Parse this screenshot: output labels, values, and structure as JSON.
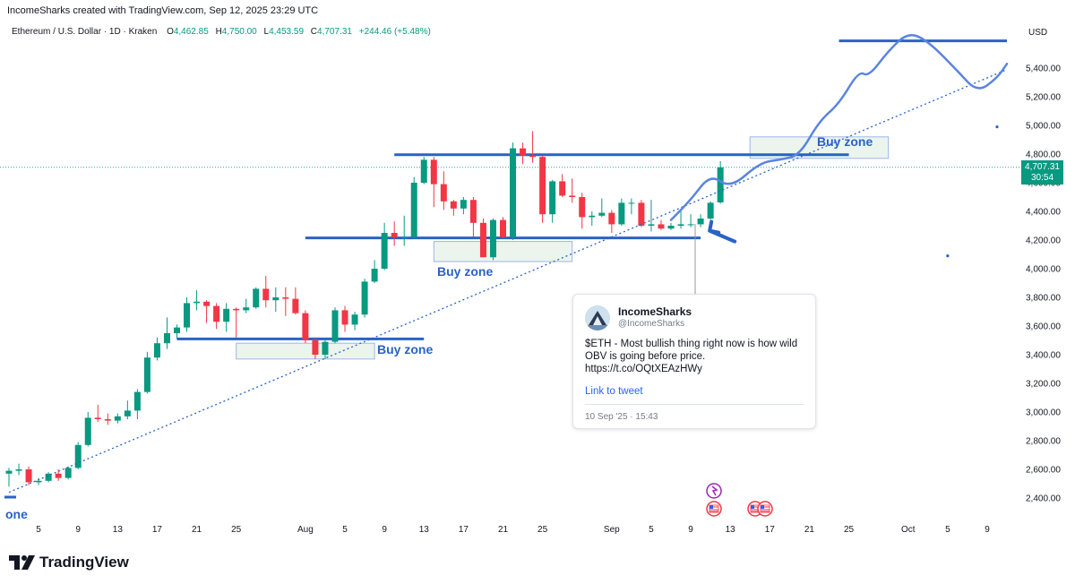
{
  "credit": "IncomeSharks created with TradingView.com, Sep 12, 2025 23:29 UTC",
  "legend": {
    "symbol": "Ethereum / U.S. Dollar · 1D · Kraken",
    "o_label": "O",
    "o": "4,462.85",
    "h_label": "H",
    "h": "4,750.00",
    "l_label": "L",
    "l": "4,453.59",
    "c_label": "C",
    "c": "4,707.31",
    "change": "+244.46 (+5.48%)"
  },
  "currency": "USD",
  "price_badge": {
    "price": "4,707.31",
    "countdown": "30:54"
  },
  "colors": {
    "up": "#089981",
    "down": "#f23645",
    "drawing": "#2962c7",
    "hand_line": "#5b84e0",
    "zone_fill": "#e6f2ea",
    "zone_border": "#9db6e6"
  },
  "annotations": {
    "buy_zone_1": "Buy zone",
    "buy_zone_2": "Buy zone",
    "buy_zone_3": "Buy zone",
    "edge_text": "one"
  },
  "tweet": {
    "name": "IncomeSharks",
    "handle": "@IncomeSharks",
    "body": "$ETH - Most bullish thing right now is how wild OBV is going before price. https://t.co/OQtXEAzHWy",
    "link": "Link to tweet",
    "date": "10 Sep '25 · 15:43"
  },
  "branding": "TradingView",
  "chart_data": {
    "type": "candlestick",
    "y_axis": {
      "ticks": [
        2400,
        2600,
        2800,
        3000,
        3200,
        3400,
        3600,
        3800,
        4000,
        4200,
        4400,
        4600,
        4800,
        5000,
        5200,
        5400
      ],
      "tick_labels": [
        "2,400.00",
        "2,600.00",
        "2,800.00",
        "3,000.00",
        "3,200.00",
        "3,400.00",
        "3,600.00",
        "3,800.00",
        "4,000.00",
        "4,200.00",
        "4,400.00",
        "4,600.00",
        "4,800.00",
        "5,000.00",
        "5,200.00",
        "5,400.00"
      ],
      "ylim": [
        2300,
        5700
      ]
    },
    "x_axis": {
      "start_date": "2025-07-02",
      "end_date": "2025-10-11",
      "tick_labels": [
        {
          "date": "2025-07-05",
          "label": "5"
        },
        {
          "date": "2025-07-09",
          "label": "9"
        },
        {
          "date": "2025-07-13",
          "label": "13"
        },
        {
          "date": "2025-07-17",
          "label": "17"
        },
        {
          "date": "2025-07-21",
          "label": "21"
        },
        {
          "date": "2025-07-25",
          "label": "25"
        },
        {
          "date": "2025-08-01",
          "label": "Aug"
        },
        {
          "date": "2025-08-05",
          "label": "5"
        },
        {
          "date": "2025-08-09",
          "label": "9"
        },
        {
          "date": "2025-08-13",
          "label": "13"
        },
        {
          "date": "2025-08-17",
          "label": "17"
        },
        {
          "date": "2025-08-21",
          "label": "21"
        },
        {
          "date": "2025-08-25",
          "label": "25"
        },
        {
          "date": "2025-09-01",
          "label": "Sep"
        },
        {
          "date": "2025-09-05",
          "label": "5"
        },
        {
          "date": "2025-09-09",
          "label": "9"
        },
        {
          "date": "2025-09-13",
          "label": "13"
        },
        {
          "date": "2025-09-17",
          "label": "17"
        },
        {
          "date": "2025-09-21",
          "label": "21"
        },
        {
          "date": "2025-09-25",
          "label": "25"
        },
        {
          "date": "2025-10-01",
          "label": "Oct"
        },
        {
          "date": "2025-10-05",
          "label": "5"
        },
        {
          "date": "2025-10-09",
          "label": "9"
        }
      ]
    },
    "last_price": 4707.31,
    "candles": [
      {
        "d": "2025-07-02",
        "o": 2570,
        "h": 2610,
        "l": 2480,
        "c": 2590
      },
      {
        "d": "2025-07-03",
        "o": 2590,
        "h": 2640,
        "l": 2560,
        "c": 2600
      },
      {
        "d": "2025-07-04",
        "o": 2600,
        "h": 2620,
        "l": 2490,
        "c": 2510
      },
      {
        "d": "2025-07-05",
        "o": 2510,
        "h": 2540,
        "l": 2490,
        "c": 2520
      },
      {
        "d": "2025-07-06",
        "o": 2520,
        "h": 2580,
        "l": 2510,
        "c": 2570
      },
      {
        "d": "2025-07-07",
        "o": 2570,
        "h": 2600,
        "l": 2520,
        "c": 2540
      },
      {
        "d": "2025-07-08",
        "o": 2540,
        "h": 2620,
        "l": 2530,
        "c": 2610
      },
      {
        "d": "2025-07-09",
        "o": 2610,
        "h": 2790,
        "l": 2600,
        "c": 2770
      },
      {
        "d": "2025-07-10",
        "o": 2770,
        "h": 3000,
        "l": 2760,
        "c": 2960
      },
      {
        "d": "2025-07-11",
        "o": 2960,
        "h": 3050,
        "l": 2930,
        "c": 2950
      },
      {
        "d": "2025-07-12",
        "o": 2950,
        "h": 2990,
        "l": 2910,
        "c": 2940
      },
      {
        "d": "2025-07-13",
        "o": 2940,
        "h": 2990,
        "l": 2920,
        "c": 2970
      },
      {
        "d": "2025-07-14",
        "o": 2970,
        "h": 3080,
        "l": 2950,
        "c": 3010
      },
      {
        "d": "2025-07-15",
        "o": 3010,
        "h": 3160,
        "l": 2950,
        "c": 3140
      },
      {
        "d": "2025-07-16",
        "o": 3140,
        "h": 3420,
        "l": 3130,
        "c": 3380
      },
      {
        "d": "2025-07-17",
        "o": 3380,
        "h": 3520,
        "l": 3360,
        "c": 3480
      },
      {
        "d": "2025-07-18",
        "o": 3480,
        "h": 3660,
        "l": 3440,
        "c": 3550
      },
      {
        "d": "2025-07-19",
        "o": 3550,
        "h": 3610,
        "l": 3510,
        "c": 3590
      },
      {
        "d": "2025-07-20",
        "o": 3590,
        "h": 3800,
        "l": 3560,
        "c": 3760
      },
      {
        "d": "2025-07-21",
        "o": 3760,
        "h": 3850,
        "l": 3710,
        "c": 3770
      },
      {
        "d": "2025-07-22",
        "o": 3770,
        "h": 3780,
        "l": 3620,
        "c": 3740
      },
      {
        "d": "2025-07-23",
        "o": 3740,
        "h": 3760,
        "l": 3580,
        "c": 3630
      },
      {
        "d": "2025-07-24",
        "o": 3630,
        "h": 3760,
        "l": 3560,
        "c": 3720
      },
      {
        "d": "2025-07-25",
        "o": 3720,
        "h": 3730,
        "l": 3520,
        "c": 3710
      },
      {
        "d": "2025-07-26",
        "o": 3710,
        "h": 3790,
        "l": 3690,
        "c": 3730
      },
      {
        "d": "2025-07-27",
        "o": 3730,
        "h": 3870,
        "l": 3720,
        "c": 3860
      },
      {
        "d": "2025-07-28",
        "o": 3860,
        "h": 3950,
        "l": 3730,
        "c": 3780
      },
      {
        "d": "2025-07-29",
        "o": 3780,
        "h": 3870,
        "l": 3700,
        "c": 3800
      },
      {
        "d": "2025-07-30",
        "o": 3800,
        "h": 3870,
        "l": 3670,
        "c": 3790
      },
      {
        "d": "2025-07-31",
        "o": 3790,
        "h": 3870,
        "l": 3680,
        "c": 3690
      },
      {
        "d": "2025-08-01",
        "o": 3690,
        "h": 3710,
        "l": 3480,
        "c": 3500
      },
      {
        "d": "2025-08-02",
        "o": 3500,
        "h": 3520,
        "l": 3370,
        "c": 3400
      },
      {
        "d": "2025-08-03",
        "o": 3400,
        "h": 3510,
        "l": 3370,
        "c": 3490
      },
      {
        "d": "2025-08-04",
        "o": 3490,
        "h": 3730,
        "l": 3480,
        "c": 3710
      },
      {
        "d": "2025-08-05",
        "o": 3710,
        "h": 3740,
        "l": 3560,
        "c": 3610
      },
      {
        "d": "2025-08-06",
        "o": 3610,
        "h": 3700,
        "l": 3570,
        "c": 3680
      },
      {
        "d": "2025-08-07",
        "o": 3680,
        "h": 3930,
        "l": 3660,
        "c": 3910
      },
      {
        "d": "2025-08-08",
        "o": 3910,
        "h": 4060,
        "l": 3900,
        "c": 4000
      },
      {
        "d": "2025-08-09",
        "o": 4000,
        "h": 4320,
        "l": 3990,
        "c": 4250
      },
      {
        "d": "2025-08-10",
        "o": 4250,
        "h": 4330,
        "l": 4160,
        "c": 4220
      },
      {
        "d": "2025-08-11",
        "o": 4220,
        "h": 4370,
        "l": 4160,
        "c": 4220
      },
      {
        "d": "2025-08-12",
        "o": 4220,
        "h": 4640,
        "l": 4210,
        "c": 4600
      },
      {
        "d": "2025-08-13",
        "o": 4600,
        "h": 4780,
        "l": 4590,
        "c": 4760
      },
      {
        "d": "2025-08-14",
        "o": 4760,
        "h": 4780,
        "l": 4430,
        "c": 4590
      },
      {
        "d": "2025-08-15",
        "o": 4590,
        "h": 4680,
        "l": 4410,
        "c": 4470
      },
      {
        "d": "2025-08-16",
        "o": 4470,
        "h": 4480,
        "l": 4370,
        "c": 4420
      },
      {
        "d": "2025-08-17",
        "o": 4420,
        "h": 4500,
        "l": 4380,
        "c": 4480
      },
      {
        "d": "2025-08-18",
        "o": 4480,
        "h": 4500,
        "l": 4220,
        "c": 4320
      },
      {
        "d": "2025-08-19",
        "o": 4320,
        "h": 4350,
        "l": 4080,
        "c": 4080
      },
      {
        "d": "2025-08-20",
        "o": 4080,
        "h": 4350,
        "l": 4060,
        "c": 4340
      },
      {
        "d": "2025-08-21",
        "o": 4340,
        "h": 4360,
        "l": 4210,
        "c": 4220
      },
      {
        "d": "2025-08-22",
        "o": 4220,
        "h": 4880,
        "l": 4200,
        "c": 4840
      },
      {
        "d": "2025-08-23",
        "o": 4840,
        "h": 4880,
        "l": 4730,
        "c": 4790
      },
      {
        "d": "2025-08-24",
        "o": 4790,
        "h": 4960,
        "l": 4740,
        "c": 4780
      },
      {
        "d": "2025-08-25",
        "o": 4780,
        "h": 4790,
        "l": 4320,
        "c": 4380
      },
      {
        "d": "2025-08-26",
        "o": 4380,
        "h": 4620,
        "l": 4320,
        "c": 4610
      },
      {
        "d": "2025-08-27",
        "o": 4610,
        "h": 4660,
        "l": 4500,
        "c": 4510
      },
      {
        "d": "2025-08-28",
        "o": 4510,
        "h": 4630,
        "l": 4460,
        "c": 4500
      },
      {
        "d": "2025-08-29",
        "o": 4500,
        "h": 4530,
        "l": 4280,
        "c": 4360
      },
      {
        "d": "2025-08-30",
        "o": 4360,
        "h": 4400,
        "l": 4300,
        "c": 4370
      },
      {
        "d": "2025-08-31",
        "o": 4370,
        "h": 4490,
        "l": 4360,
        "c": 4390
      },
      {
        "d": "2025-09-01",
        "o": 4390,
        "h": 4410,
        "l": 4250,
        "c": 4310
      },
      {
        "d": "2025-09-02",
        "o": 4310,
        "h": 4490,
        "l": 4300,
        "c": 4460
      },
      {
        "d": "2025-09-03",
        "o": 4460,
        "h": 4490,
        "l": 4380,
        "c": 4460
      },
      {
        "d": "2025-09-04",
        "o": 4460,
        "h": 4480,
        "l": 4290,
        "c": 4300
      },
      {
        "d": "2025-09-05",
        "o": 4300,
        "h": 4480,
        "l": 4260,
        "c": 4310
      },
      {
        "d": "2025-09-06",
        "o": 4310,
        "h": 4340,
        "l": 4270,
        "c": 4280
      },
      {
        "d": "2025-09-07",
        "o": 4280,
        "h": 4320,
        "l": 4270,
        "c": 4300
      },
      {
        "d": "2025-09-08",
        "o": 4300,
        "h": 4400,
        "l": 4280,
        "c": 4310
      },
      {
        "d": "2025-09-09",
        "o": 4310,
        "h": 4380,
        "l": 4290,
        "c": 4310
      },
      {
        "d": "2025-09-10",
        "o": 4310,
        "h": 4380,
        "l": 4290,
        "c": 4350
      },
      {
        "d": "2025-09-11",
        "o": 4350,
        "h": 4470,
        "l": 4340,
        "c": 4460
      },
      {
        "d": "2025-09-12",
        "o": 4462.85,
        "h": 4750,
        "l": 4453.59,
        "c": 4707.31
      }
    ],
    "drawings": {
      "horizontal_lines": [
        {
          "price": 3510,
          "from": "2025-07-19",
          "to": "2025-08-13"
        },
        {
          "price": 4215,
          "from": "2025-08-01",
          "to": "2025-09-10"
        },
        {
          "price": 4795,
          "from": "2025-08-10",
          "to": "2025-09-25"
        },
        {
          "price": 5590,
          "from": "2025-09-24",
          "to": "2025-10-11"
        }
      ],
      "zones": [
        {
          "from": "2025-07-25",
          "to": "2025-08-08",
          "low": 3370,
          "high": 3480
        },
        {
          "from": "2025-08-14",
          "to": "2025-08-28",
          "low": 4050,
          "high": 4190
        },
        {
          "from": "2025-09-15",
          "to": "2025-09-29",
          "low": 4770,
          "high": 4920
        }
      ],
      "trendline": {
        "from": {
          "date": "2025-07-02",
          "price": 2440
        },
        "to": {
          "date": "2025-10-11",
          "price": 5390
        }
      },
      "arrow_tip": {
        "date": "2025-09-12",
        "price": 4290
      },
      "projection": [
        {
          "date": "2025-09-07",
          "price": 4340
        },
        {
          "date": "2025-09-09",
          "price": 4480
        },
        {
          "date": "2025-09-11",
          "price": 4660
        },
        {
          "date": "2025-09-13",
          "price": 4560
        },
        {
          "date": "2025-09-16",
          "price": 4740
        },
        {
          "date": "2025-09-18",
          "price": 4760
        },
        {
          "date": "2025-09-20",
          "price": 4790
        },
        {
          "date": "2025-09-22",
          "price": 5030
        },
        {
          "date": "2025-09-24",
          "price": 5150
        },
        {
          "date": "2025-09-26",
          "price": 5380
        },
        {
          "date": "2025-09-27",
          "price": 5340
        },
        {
          "date": "2025-09-29",
          "price": 5520
        },
        {
          "date": "2025-10-01",
          "price": 5650
        },
        {
          "date": "2025-10-03",
          "price": 5590
        },
        {
          "date": "2025-10-06",
          "price": 5380
        },
        {
          "date": "2025-10-08",
          "price": 5230
        },
        {
          "date": "2025-10-10",
          "price": 5330
        },
        {
          "date": "2025-10-11",
          "price": 5430
        }
      ],
      "dots": [
        {
          "date": "2025-10-05",
          "price": 4090
        },
        {
          "date": "2025-10-10",
          "price": 4990
        }
      ]
    }
  }
}
